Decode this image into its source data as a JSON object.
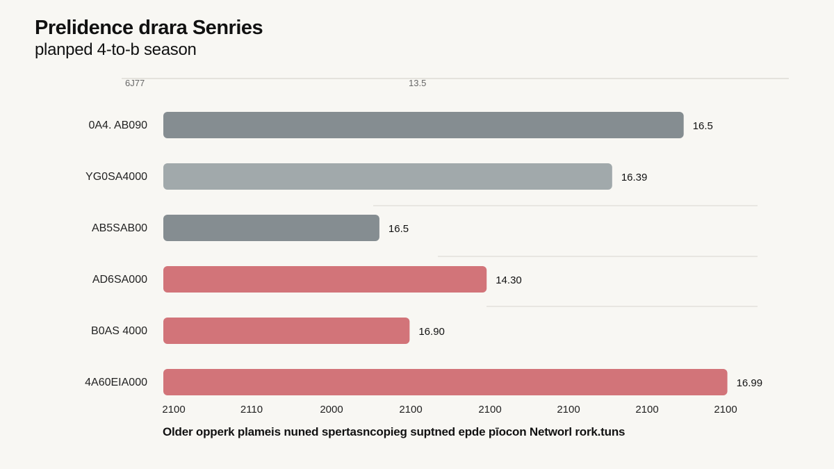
{
  "title": "Prelidence drara Senries",
  "subtitle": "planped 4-to-b season",
  "footnote": "Older opperk plameis nuned spertasncopieg suptned epde pīocon Networl rork.tuns",
  "colors": {
    "gray_dark": "#858d91",
    "gray_light": "#a1a9ab",
    "red": "#d27479"
  },
  "chart_data": {
    "type": "bar",
    "orientation": "horizontal",
    "title": "Prelidence drara Senries",
    "subtitle": "planped 4-to-b season",
    "top_tick_labels": [
      "6J77",
      "13.5"
    ],
    "x_tick_labels": [
      "2100",
      "2110",
      "2000",
      "2100",
      "2100",
      "2100",
      "2100",
      "2100"
    ],
    "xlim": [
      0,
      7.2
    ],
    "categories": [
      "0A4. AB090",
      "YG0SA4000",
      "AB5SAB00",
      "AD6SA000",
      "B0AS 4000",
      "4A60EIA000"
    ],
    "values": [
      6.55,
      5.65,
      2.72,
      4.07,
      3.1,
      7.1
    ],
    "value_labels": [
      "16.5",
      "16.39",
      "16.5",
      "14.30",
      "16.90",
      "16.99"
    ],
    "bar_colors": [
      "#858d91",
      "#a1a9ab",
      "#858d91",
      "#d27479",
      "#d27479",
      "#d27479"
    ],
    "grid": "partial horizontal lines",
    "legend": "none"
  }
}
